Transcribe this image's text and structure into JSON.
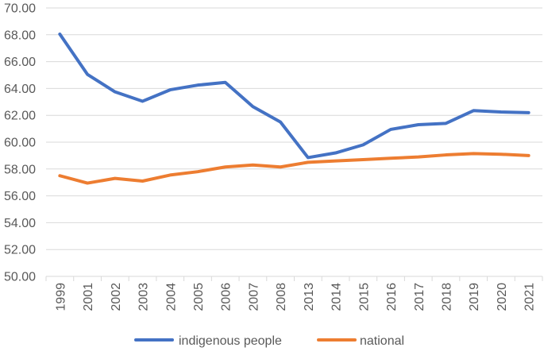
{
  "chart_data": {
    "type": "line",
    "title": "",
    "xlabel": "",
    "ylabel": "",
    "ylim": [
      50,
      70
    ],
    "ytick_step": 2,
    "ytick_labels": [
      "50.00",
      "52.00",
      "54.00",
      "56.00",
      "58.00",
      "60.00",
      "62.00",
      "64.00",
      "66.00",
      "68.00",
      "70.00"
    ],
    "categories": [
      "1999",
      "2001",
      "2002",
      "2003",
      "2004",
      "2005",
      "2006",
      "2007",
      "2008",
      "2013",
      "2014",
      "2015",
      "2016",
      "2017",
      "2018",
      "2019",
      "2020",
      "2021"
    ],
    "grid": true,
    "legend_position": "bottom",
    "series": [
      {
        "name": "indigenous people",
        "color": "#4472c4",
        "values": [
          68.05,
          65.05,
          63.75,
          63.05,
          63.9,
          64.25,
          64.45,
          62.65,
          61.5,
          58.85,
          59.2,
          59.8,
          60.95,
          61.3,
          61.4,
          62.35,
          62.25,
          62.2
        ]
      },
      {
        "name": "national",
        "color": "#ed7d31",
        "values": [
          57.5,
          56.95,
          57.3,
          57.1,
          57.55,
          57.8,
          58.15,
          58.3,
          58.15,
          58.5,
          58.6,
          58.7,
          58.8,
          58.9,
          59.05,
          59.15,
          59.1,
          59.0
        ]
      }
    ]
  }
}
